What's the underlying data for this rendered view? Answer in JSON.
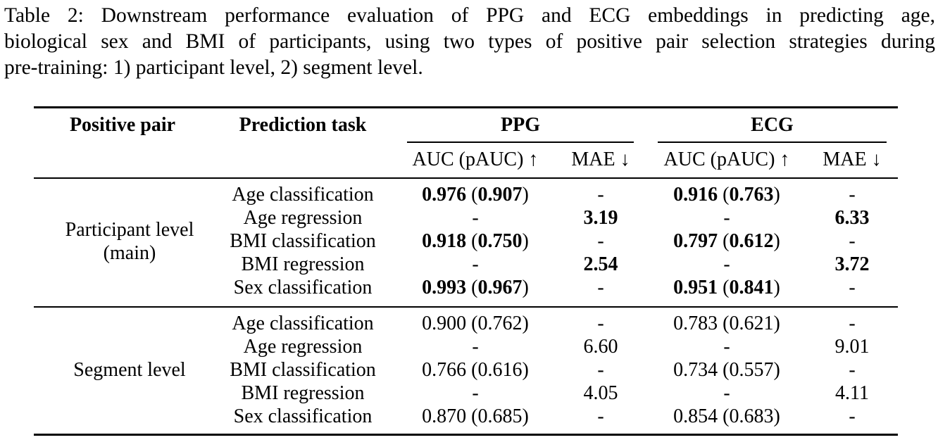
{
  "caption": {
    "line1": "Table 2: Downstream performance evaluation of PPG and ECG embeddings in predicting age,",
    "line2": "biological sex and BMI of participants, using two types of positive pair selection strategies during",
    "line3": "pre-training: 1) participant level, 2) segment level."
  },
  "header": {
    "positive_pair": "Positive pair",
    "prediction_task": "Prediction task",
    "ppg": "PPG",
    "ecg": "ECG",
    "ppg_auc": "AUC (pAUC) ↑",
    "ppg_mae": "MAE ↓",
    "ecg_auc": "AUC (pAUC) ↑",
    "ecg_mae": "MAE ↓"
  },
  "groups": [
    {
      "label_line1": "Participant level",
      "label_line2": "(main)",
      "rows": [
        {
          "task": "Age classification",
          "ppg_auc": "0.976",
          "ppg_pauc": "0.907",
          "ppg_mae": "-",
          "ecg_auc": "0.916",
          "ecg_pauc": "0.763",
          "ecg_mae": "-",
          "bold": true
        },
        {
          "task": "Age regression",
          "ppg_dash": "-",
          "ppg_mae": "3.19",
          "ecg_dash": "-",
          "ecg_mae": "6.33",
          "bold": true
        },
        {
          "task": "BMI classification",
          "ppg_auc": "0.918",
          "ppg_pauc": "0.750",
          "ppg_mae": "-",
          "ecg_auc": "0.797",
          "ecg_pauc": "0.612",
          "ecg_mae": "-",
          "bold": true
        },
        {
          "task": "BMI regression",
          "ppg_dash": "-",
          "ppg_mae": "2.54",
          "ecg_dash": "-",
          "ecg_mae": "3.72",
          "bold": true
        },
        {
          "task": "Sex classification",
          "ppg_auc": "0.993",
          "ppg_pauc": "0.967",
          "ppg_mae": "-",
          "ecg_auc": "0.951",
          "ecg_pauc": "0.841",
          "ecg_mae": "-",
          "bold": true
        }
      ]
    },
    {
      "label_line1": "Segment level",
      "rows": [
        {
          "task": "Age classification",
          "ppg_auc": "0.900",
          "ppg_pauc": "0.762",
          "ppg_mae": "-",
          "ecg_auc": "0.783",
          "ecg_pauc": "0.621",
          "ecg_mae": "-"
        },
        {
          "task": "Age regression",
          "ppg_dash": "-",
          "ppg_mae": "6.60",
          "ecg_dash": "-",
          "ecg_mae": "9.01"
        },
        {
          "task": "BMI classification",
          "ppg_auc": "0.766",
          "ppg_pauc": "0.616",
          "ppg_mae": "-",
          "ecg_auc": "0.734",
          "ecg_pauc": "0.557",
          "ecg_mae": "-"
        },
        {
          "task": "BMI regression",
          "ppg_dash": "-",
          "ppg_mae": "4.05",
          "ecg_dash": "-",
          "ecg_mae": "4.11"
        },
        {
          "task": "Sex classification",
          "ppg_auc": "0.870",
          "ppg_pauc": "0.685",
          "ppg_mae": "-",
          "ecg_auc": "0.854",
          "ecg_pauc": "0.683",
          "ecg_mae": "-"
        }
      ]
    }
  ]
}
